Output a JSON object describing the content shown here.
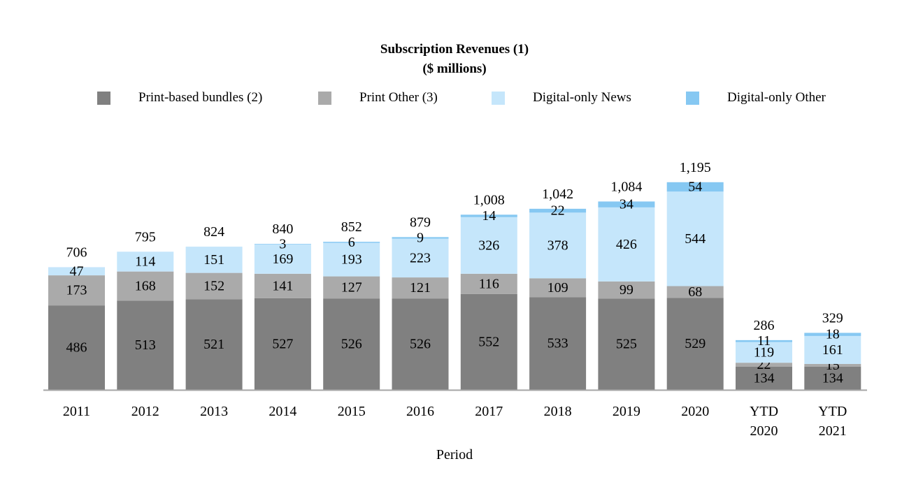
{
  "chart_data": {
    "type": "bar",
    "stacked": true,
    "title": "Subscription Revenues (1)",
    "subtitle": "($ millions)",
    "xlabel": "Period",
    "ylabel": "",
    "legend_position": "top",
    "grid": false,
    "categories": [
      [
        "2011"
      ],
      [
        "2012"
      ],
      [
        "2013"
      ],
      [
        "2014"
      ],
      [
        "2015"
      ],
      [
        "2016"
      ],
      [
        "2017"
      ],
      [
        "2018"
      ],
      [
        "2019"
      ],
      [
        "2020"
      ],
      [
        "YTD",
        "2020"
      ],
      [
        "YTD",
        "2021"
      ]
    ],
    "series": [
      {
        "name": "Print-based bundles (2)",
        "color": "#808080",
        "values": [
          486,
          513,
          521,
          527,
          526,
          526,
          552,
          533,
          525,
          529,
          134,
          134
        ]
      },
      {
        "name": "Print Other (3)",
        "color": "#aaaaaa",
        "values": [
          173,
          168,
          152,
          141,
          127,
          121,
          116,
          109,
          99,
          68,
          22,
          15
        ]
      },
      {
        "name": "Digital-only News",
        "color": "#c5e6fb",
        "values": [
          47,
          114,
          151,
          169,
          193,
          223,
          326,
          378,
          426,
          544,
          119,
          161
        ]
      },
      {
        "name": "Digital-only Other",
        "color": "#86c8f2",
        "values": [
          null,
          null,
          null,
          3,
          6,
          9,
          14,
          22,
          34,
          54,
          11,
          18
        ]
      }
    ],
    "totals": [
      "706",
      "795",
      "824",
      "840",
      "852",
      "879",
      "1,008",
      "1,042",
      "1,084",
      "1,195",
      "286",
      "329"
    ]
  }
}
